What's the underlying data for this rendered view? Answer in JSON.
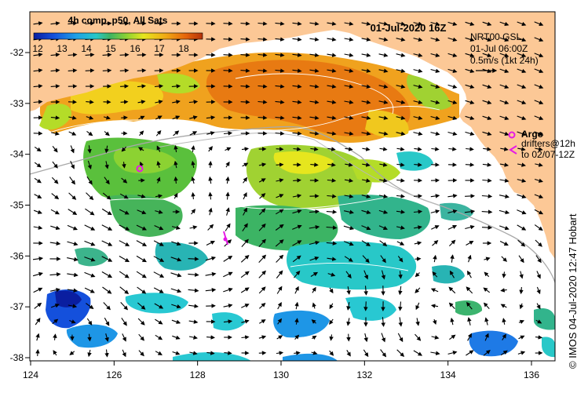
{
  "map": {
    "title": "01-Jul-2020 16Z",
    "colorbar": {
      "title": "4h comp, p50, All Sats",
      "ticks": [
        "12",
        "13",
        "14",
        "15",
        "16",
        "17",
        "18"
      ],
      "colors": [
        "#0a1ea0",
        "#1450dc",
        "#1e96e6",
        "#28c8d2",
        "#32c8a0",
        "#46b45a",
        "#78c83c",
        "#b4dc28",
        "#e6e61e",
        "#f0c81e",
        "#f09614",
        "#e6640a",
        "#c83c0a"
      ]
    },
    "current_source": {
      "line1": "NRT00 GSL",
      "line2": "01-Jul 06:00Z",
      "line3": "0.5m/s (1kt 24h)"
    },
    "legend": {
      "argo_label": "Argo",
      "drifter_line1": "drifters@12h",
      "drifter_line2": "to 02/07-12Z",
      "argo_color": "#e619e6",
      "land_color": "#fcc896"
    },
    "x_ticks": [
      "124",
      "126",
      "128",
      "130",
      "132",
      "134",
      "136"
    ],
    "y_ticks": [
      "-32",
      "-33",
      "-34",
      "-35",
      "-36",
      "-37",
      "-38"
    ],
    "credit": "© IMOS 04-Jul-2020 12:47 Hobart"
  }
}
